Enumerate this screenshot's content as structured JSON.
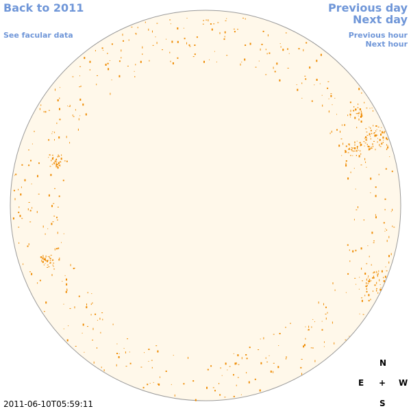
{
  "nav": {
    "back": "Back to 2011",
    "facular": "See facular data",
    "previous_day": "Previous day",
    "next_day": "Next day",
    "previous_hour": "Previous hour",
    "next_hour": "Next hour"
  },
  "compass": {
    "north": "N",
    "south": "S",
    "east": "E",
    "west": "W",
    "center": "+"
  },
  "timestamp": "2011-06-10T05:59:11",
  "colors": {
    "link": "#6f96d8",
    "disk_fill": "#fff8ea",
    "disk_outline": "#999999",
    "facula_spot": "#ee8a00"
  },
  "icons": {
    "disk": "solar-disk-icon"
  }
}
